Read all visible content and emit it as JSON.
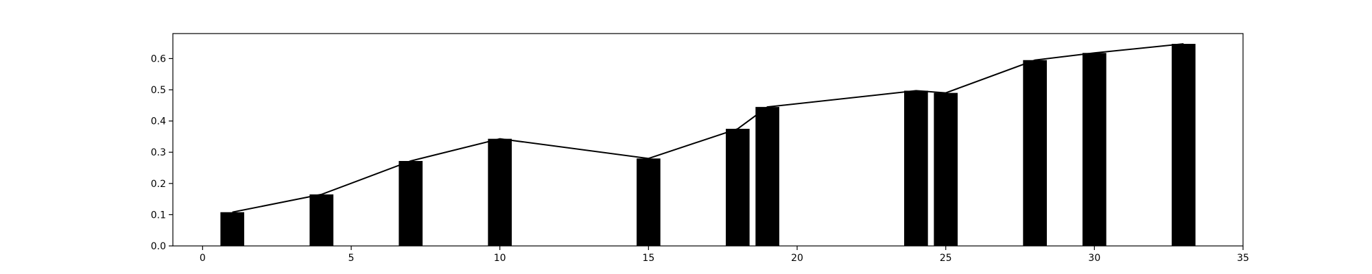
{
  "chart_data": {
    "type": "bar",
    "x": [
      1,
      4,
      7,
      10,
      15,
      18,
      19,
      24,
      25,
      28,
      30,
      33
    ],
    "values": [
      0.108,
      0.165,
      0.272,
      0.343,
      0.28,
      0.375,
      0.445,
      0.497,
      0.49,
      0.595,
      0.618,
      0.647
    ],
    "line_overlay": true,
    "title": "",
    "xlabel": "",
    "ylabel": "",
    "xlim": [
      -1,
      35
    ],
    "ylim": [
      0,
      0.68
    ],
    "xticks": [
      "0",
      "5",
      "10",
      "15",
      "20",
      "25",
      "30",
      "35"
    ],
    "yticks": [
      "0.0",
      "0.1",
      "0.2",
      "0.3",
      "0.4",
      "0.5",
      "0.6"
    ],
    "grid": false,
    "colors": {
      "bar": "#000000",
      "line": "#000000"
    }
  }
}
